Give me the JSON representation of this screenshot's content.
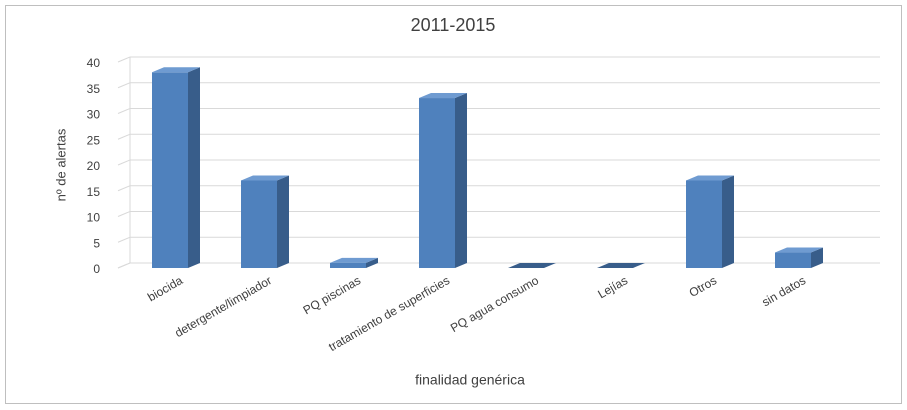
{
  "chart_data": {
    "type": "bar3d",
    "title": "2011-2015",
    "y_label": "nº de alertas",
    "x_label": "finalidad genérica",
    "categories": [
      "biocida",
      "detergente/limpiador",
      "PQ piscinas",
      "tratamiento de superficies",
      "PQ agua consumo",
      "Lejías",
      "Otros",
      "sin datos"
    ],
    "values": [
      38,
      17,
      1,
      33,
      0,
      0,
      17,
      3
    ],
    "color": "#4f81bd",
    "ylim": [
      0,
      40
    ],
    "yticks": [
      0,
      5,
      10,
      15,
      20,
      25,
      30,
      35,
      40
    ],
    "grid": true
  }
}
